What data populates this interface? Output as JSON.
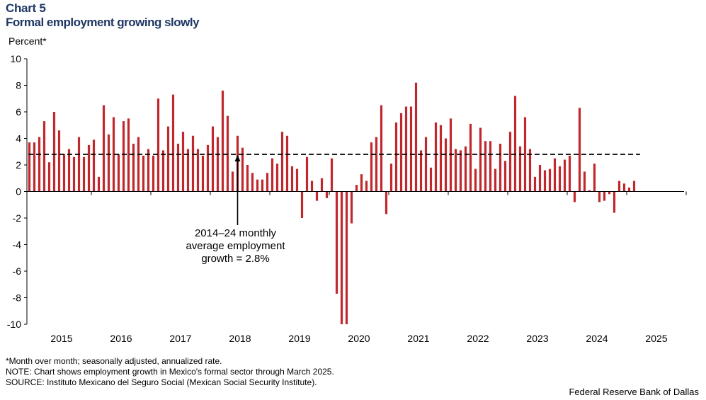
{
  "header": {
    "chart_number": "Chart 5",
    "title": "Formal employment growing slowly"
  },
  "chart_data": {
    "type": "bar",
    "title": "Formal employment growing slowly",
    "ylabel": "Percent*",
    "xlabel": "",
    "ylim": [
      -10,
      10
    ],
    "yticks": [
      10,
      8,
      6,
      4,
      2,
      0,
      -2,
      -4,
      -6,
      -8,
      -10
    ],
    "year_labels": [
      "2015",
      "2016",
      "2017",
      "2018",
      "2019",
      "2020",
      "2021",
      "2022",
      "2023",
      "2024",
      "2025"
    ],
    "start": "2014-12",
    "end": "2025-03",
    "series": [
      {
        "name": "Monthly formal employment growth",
        "color": "#c0282d",
        "values": [
          3.7,
          3.7,
          4.1,
          5.3,
          2.2,
          6.0,
          4.6,
          2.8,
          3.2,
          2.6,
          4.1,
          2.6,
          3.5,
          3.9,
          1.1,
          6.5,
          4.3,
          5.6,
          2.8,
          5.3,
          5.5,
          3.6,
          4.1,
          2.7,
          3.2,
          2.7,
          7.0,
          3.1,
          4.9,
          7.3,
          3.6,
          4.5,
          3.2,
          4.2,
          3.2,
          2.7,
          3.5,
          4.9,
          4.1,
          7.6,
          5.7,
          1.5,
          4.2,
          3.3,
          2.0,
          1.4,
          0.9,
          0.9,
          1.4,
          2.5,
          2.1,
          4.5,
          4.2,
          1.9,
          1.7,
          -2.0,
          2.6,
          0.8,
          -0.7,
          1.0,
          -0.5,
          2.5,
          -7.7,
          -10.0,
          -10.0,
          -2.4,
          0.5,
          1.3,
          0.8,
          3.7,
          4.1,
          6.5,
          -1.7,
          2.1,
          5.2,
          5.9,
          6.4,
          6.4,
          8.2,
          3.1,
          4.1,
          1.8,
          5.2,
          5.0,
          4.0,
          5.5,
          3.2,
          3.1,
          3.4,
          5.1,
          1.7,
          4.8,
          3.8,
          3.8,
          1.7,
          3.6,
          2.3,
          4.5,
          7.2,
          3.4,
          5.6,
          3.2,
          1.1,
          2.0,
          1.6,
          1.7,
          2.5,
          1.9,
          2.4,
          2.7,
          -0.8,
          6.3,
          1.5,
          0.1,
          2.1,
          -0.8,
          -0.7,
          -0.2,
          -1.6,
          0.8,
          0.6,
          0.3,
          0.8
        ]
      }
    ],
    "reference_line": {
      "label": "2014–24 monthly average employment growth",
      "value": 2.8,
      "style": "dashed"
    },
    "annotation": {
      "lines": [
        "2014–24 monthly",
        "average employment",
        "growth = 2.8%"
      ],
      "arrow_target_month": "2018-06"
    }
  },
  "footer": {
    "note1": "*Month over month; seasonally adjusted, annualized rate.",
    "note2": "NOTE: Chart shows employment growth in Mexico's formal sector through March 2025.",
    "note3": "SOURCE: Instituto Mexicano del Seguro Social (Mexican Social Security Institute).",
    "credit": "Federal Reserve Bank of Dallas"
  }
}
